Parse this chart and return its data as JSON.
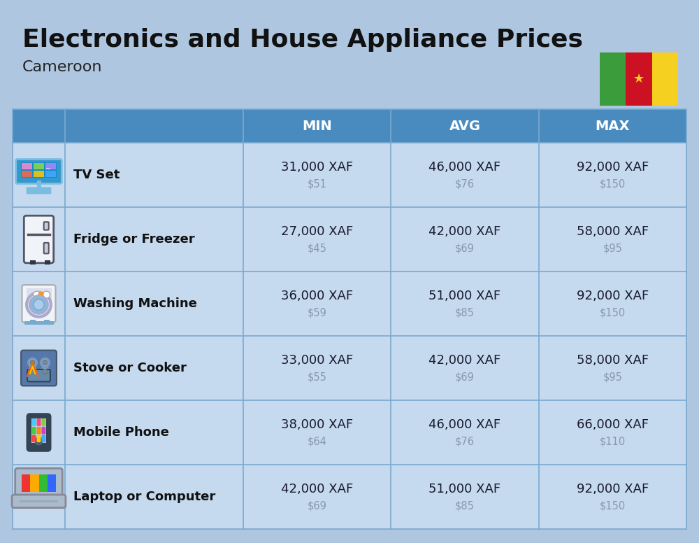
{
  "title": "Electronics and House Appliance Prices",
  "subtitle": "Cameroon",
  "bg_color": "#aec6e0",
  "header_bg": "#4a8bbf",
  "header_text_color": "#ffffff",
  "row_bg": "#c5d9ef",
  "divider_color": "#7aaad0",
  "columns": [
    "MIN",
    "AVG",
    "MAX"
  ],
  "items": [
    {
      "name": "TV Set",
      "min_xaf": "31,000 XAF",
      "min_usd": "$51",
      "avg_xaf": "46,000 XAF",
      "avg_usd": "$76",
      "max_xaf": "92,000 XAF",
      "max_usd": "$150"
    },
    {
      "name": "Fridge or Freezer",
      "min_xaf": "27,000 XAF",
      "min_usd": "$45",
      "avg_xaf": "42,000 XAF",
      "avg_usd": "$69",
      "max_xaf": "58,000 XAF",
      "max_usd": "$95"
    },
    {
      "name": "Washing Machine",
      "min_xaf": "36,000 XAF",
      "min_usd": "$59",
      "avg_xaf": "51,000 XAF",
      "avg_usd": "$85",
      "max_xaf": "92,000 XAF",
      "max_usd": "$150"
    },
    {
      "name": "Stove or Cooker",
      "min_xaf": "33,000 XAF",
      "min_usd": "$55",
      "avg_xaf": "42,000 XAF",
      "avg_usd": "$69",
      "max_xaf": "58,000 XAF",
      "max_usd": "$95"
    },
    {
      "name": "Mobile Phone",
      "min_xaf": "38,000 XAF",
      "min_usd": "$64",
      "avg_xaf": "46,000 XAF",
      "avg_usd": "$76",
      "max_xaf": "66,000 XAF",
      "max_usd": "$110"
    },
    {
      "name": "Laptop or Computer",
      "min_xaf": "42,000 XAF",
      "min_usd": "$69",
      "avg_xaf": "51,000 XAF",
      "avg_usd": "$85",
      "max_xaf": "92,000 XAF",
      "max_usd": "$150"
    }
  ],
  "flag_colors": [
    "#3a9c3a",
    "#cc1122",
    "#f5d020"
  ],
  "title_fontsize": 26,
  "subtitle_fontsize": 16,
  "header_fontsize": 14,
  "item_name_fontsize": 13,
  "xaf_fontsize": 13,
  "usd_fontsize": 10.5
}
